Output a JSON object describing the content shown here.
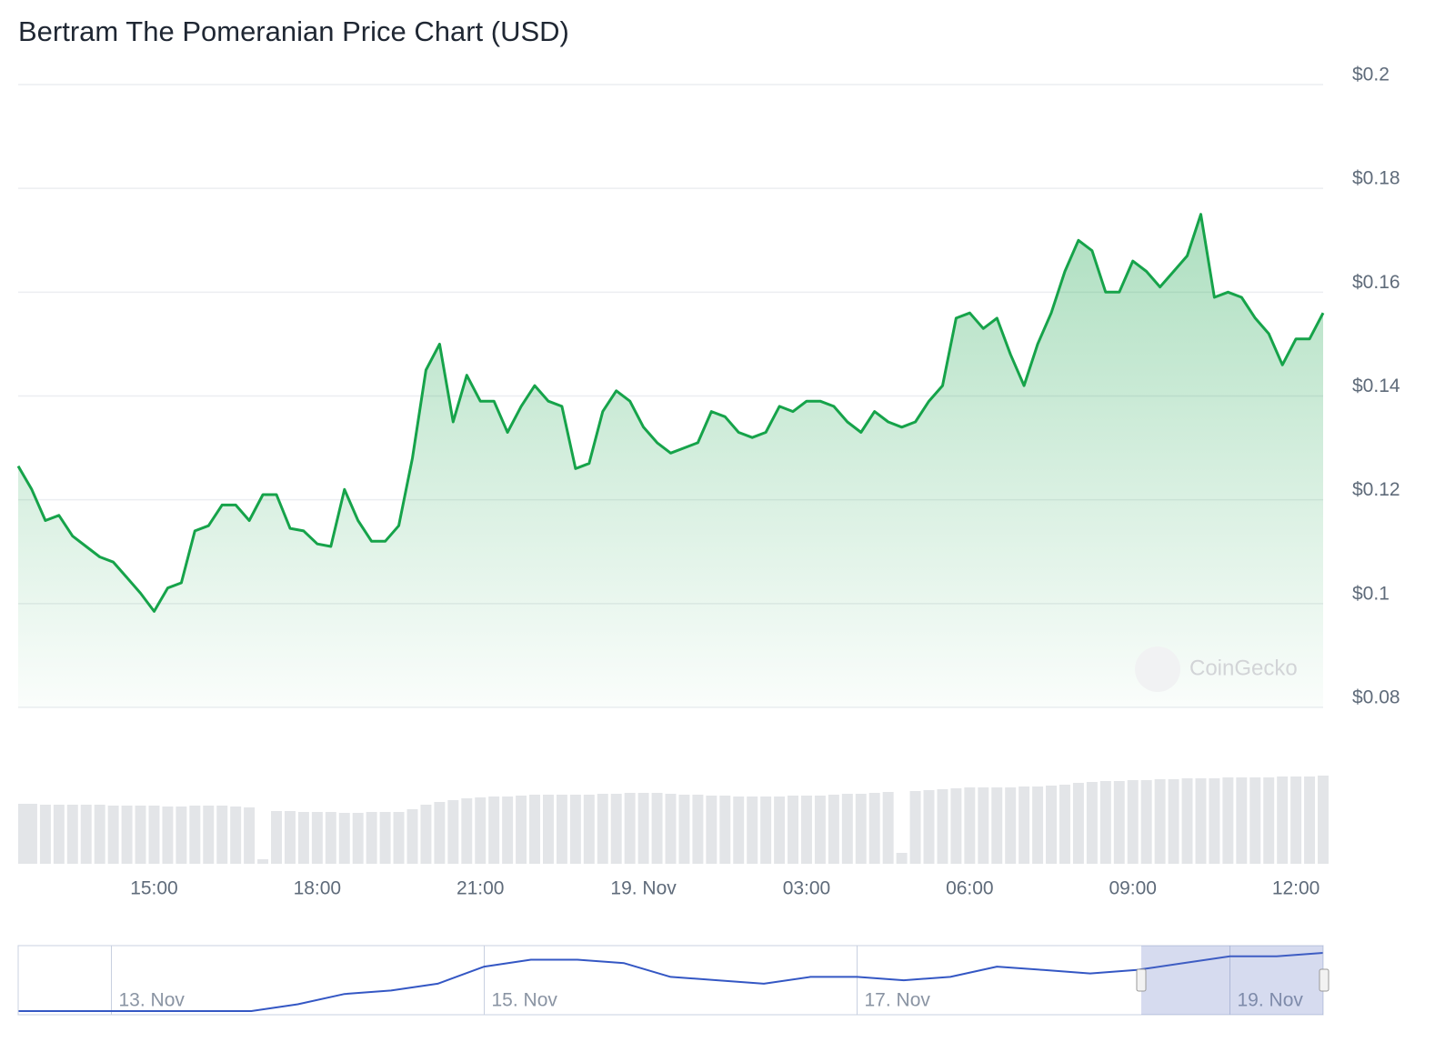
{
  "chart_data": [
    {
      "type": "line",
      "title": "Bertram The Pomeranian Price Chart (USD)",
      "watermark": "CoinGecko",
      "color": "#16a34a",
      "area": true,
      "grid": true,
      "categories": [
        null,
        null,
        null,
        null,
        null,
        null,
        null,
        null,
        null,
        null,
        "15:00",
        null,
        null,
        null,
        null,
        null,
        null,
        null,
        null,
        null,
        null,
        null,
        "18:00",
        null,
        null,
        null,
        null,
        null,
        null,
        null,
        null,
        null,
        null,
        null,
        "21:00",
        null,
        null,
        null,
        null,
        null,
        null,
        null,
        null,
        null,
        null,
        null,
        "19. Nov",
        null,
        null,
        null,
        null,
        null,
        null,
        null,
        null,
        null,
        null,
        null,
        "03:00",
        null,
        null,
        null,
        null,
        null,
        null,
        null,
        null,
        null,
        null,
        null,
        "06:00",
        null,
        null,
        null,
        null,
        null,
        null,
        null,
        null,
        null,
        null,
        null,
        "09:00",
        null,
        null,
        null,
        null,
        null,
        null,
        null,
        null,
        null,
        null,
        null,
        "12:00",
        null,
        null
      ],
      "values": [
        0.1265,
        0.122,
        0.116,
        0.117,
        0.113,
        0.111,
        0.109,
        0.108,
        0.105,
        0.102,
        0.0985,
        0.103,
        0.104,
        0.114,
        0.115,
        0.119,
        0.119,
        0.116,
        0.121,
        0.121,
        0.1145,
        0.114,
        0.1115,
        0.111,
        0.122,
        0.116,
        0.112,
        0.112,
        0.115,
        0.128,
        0.145,
        0.15,
        0.135,
        0.144,
        0.139,
        0.139,
        0.133,
        0.138,
        0.142,
        0.139,
        0.138,
        0.126,
        0.127,
        0.137,
        0.141,
        0.139,
        0.134,
        0.131,
        0.129,
        0.13,
        0.131,
        0.137,
        0.136,
        0.133,
        0.132,
        0.133,
        0.138,
        0.137,
        0.139,
        0.139,
        0.138,
        0.135,
        0.133,
        0.137,
        0.135,
        0.134,
        0.135,
        0.139,
        0.142,
        0.155,
        0.156,
        0.153,
        0.155,
        0.148,
        0.142,
        0.15,
        0.156,
        0.164,
        0.17,
        0.168,
        0.16,
        0.16,
        0.166,
        0.164,
        0.161,
        0.164,
        0.167,
        0.175,
        0.159,
        0.16,
        0.159,
        0.155,
        0.152,
        0.146,
        0.151,
        0.151,
        0.156
      ],
      "ylim": [
        0.08,
        0.2
      ],
      "yticks": [
        {
          "value": 0.08,
          "label": "$0.08"
        },
        {
          "value": 0.1,
          "label": "$0.1"
        },
        {
          "value": 0.12,
          "label": "$0.12"
        },
        {
          "value": 0.14,
          "label": "$0.14"
        },
        {
          "value": 0.16,
          "label": "$0.16"
        },
        {
          "value": 0.18,
          "label": "$0.18"
        },
        {
          "value": 0.2,
          "label": "$0.2"
        }
      ]
    },
    {
      "type": "bar",
      "color": "#e3e5e8",
      "values": [
        66,
        66,
        65,
        65,
        65,
        65,
        65,
        64,
        64,
        64,
        64,
        63,
        63,
        64,
        64,
        64,
        63,
        62,
        5,
        58,
        58,
        57,
        57,
        57,
        56,
        56,
        57,
        57,
        57,
        60,
        65,
        68,
        70,
        72,
        73,
        74,
        74,
        75,
        76,
        76,
        76,
        76,
        76,
        77,
        77,
        78,
        78,
        78,
        77,
        76,
        76,
        75,
        75,
        74,
        74,
        74,
        74,
        75,
        75,
        75,
        76,
        77,
        77,
        78,
        79,
        12,
        80,
        81,
        82,
        83,
        84,
        84,
        84,
        84,
        85,
        85,
        86,
        87,
        89,
        90,
        91,
        91,
        92,
        92,
        93,
        93,
        94,
        94,
        94,
        95,
        95,
        95,
        95,
        96,
        96,
        96,
        97
      ]
    },
    {
      "type": "line",
      "color": "#3457c4",
      "area": false,
      "categories": [
        null,
        null,
        "13. Nov",
        null,
        null,
        null,
        null,
        null,
        null,
        null,
        "15. Nov",
        null,
        null,
        null,
        null,
        null,
        null,
        null,
        "17. Nov",
        null,
        null,
        null,
        null,
        null,
        null,
        null,
        "19. Nov",
        null,
        null
      ],
      "values": [
        0.01,
        0.01,
        0.01,
        0.01,
        0.01,
        0.01,
        0.02,
        0.035,
        0.04,
        0.05,
        0.075,
        0.085,
        0.085,
        0.08,
        0.06,
        0.055,
        0.05,
        0.06,
        0.06,
        0.055,
        0.06,
        0.075,
        0.07,
        0.065,
        0.07,
        0.08,
        0.09,
        0.09,
        0.095
      ]
    }
  ]
}
